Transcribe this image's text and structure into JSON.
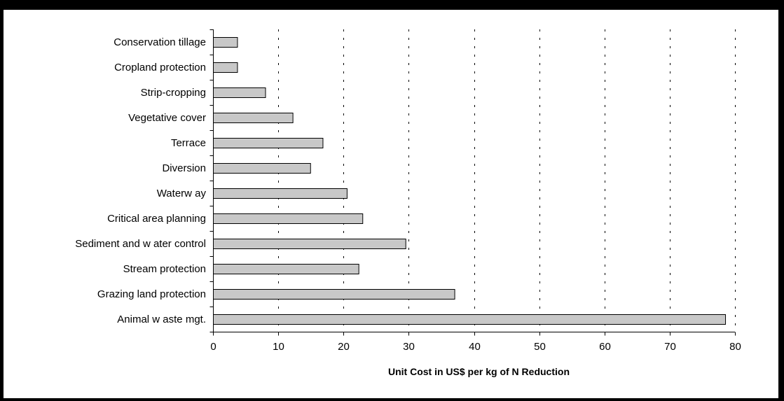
{
  "chart_data": {
    "type": "bar",
    "orientation": "horizontal",
    "categories": [
      "Conservation tillage",
      "Cropland protection",
      "Strip-cropping",
      "Vegetative cover",
      "Terrace",
      "Diversion",
      "Waterw ay",
      "Critical area planning",
      "Sediment and w ater control",
      "Stream protection",
      "Grazing land protection",
      "Animal w aste mgt."
    ],
    "values": [
      3.7,
      3.7,
      8.0,
      12.2,
      16.8,
      14.9,
      20.5,
      22.9,
      29.5,
      22.3,
      37.0,
      78.5
    ],
    "xlabel": "Unit Cost  in US$ per kg of N Reduction",
    "ylabel": "",
    "title": "",
    "xlim": [
      0,
      80
    ],
    "xticks": [
      0,
      10,
      20,
      30,
      40,
      50,
      60,
      70,
      80
    ],
    "grid": "vertical dotted",
    "legend": "none",
    "colors": {
      "bar_fill": "#c8c8c8",
      "bar_stroke": "#000000",
      "grid": "#000000",
      "background": "#ffffff",
      "frame": "#000000"
    }
  }
}
